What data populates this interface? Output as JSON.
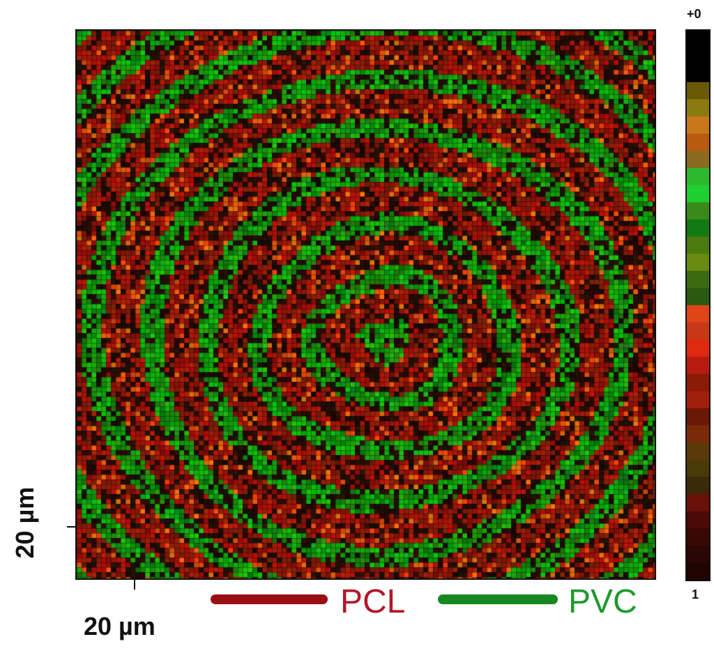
{
  "colorbar": {
    "top_label": "+0",
    "bottom_label": "1"
  },
  "scale": {
    "y_label": "20 µm",
    "x_label": "20 µm"
  },
  "legend": [
    {
      "label": "PCL",
      "color": "#9b0f12",
      "text_color": "#b0182a"
    },
    {
      "label": "PVC",
      "color": "#16881f",
      "text_color": "#1f9a2e"
    }
  ],
  "colors": {
    "pcl_red": "#9b0f12",
    "pvc_green": "#16881f",
    "background_dark": "#2a0a05"
  }
}
